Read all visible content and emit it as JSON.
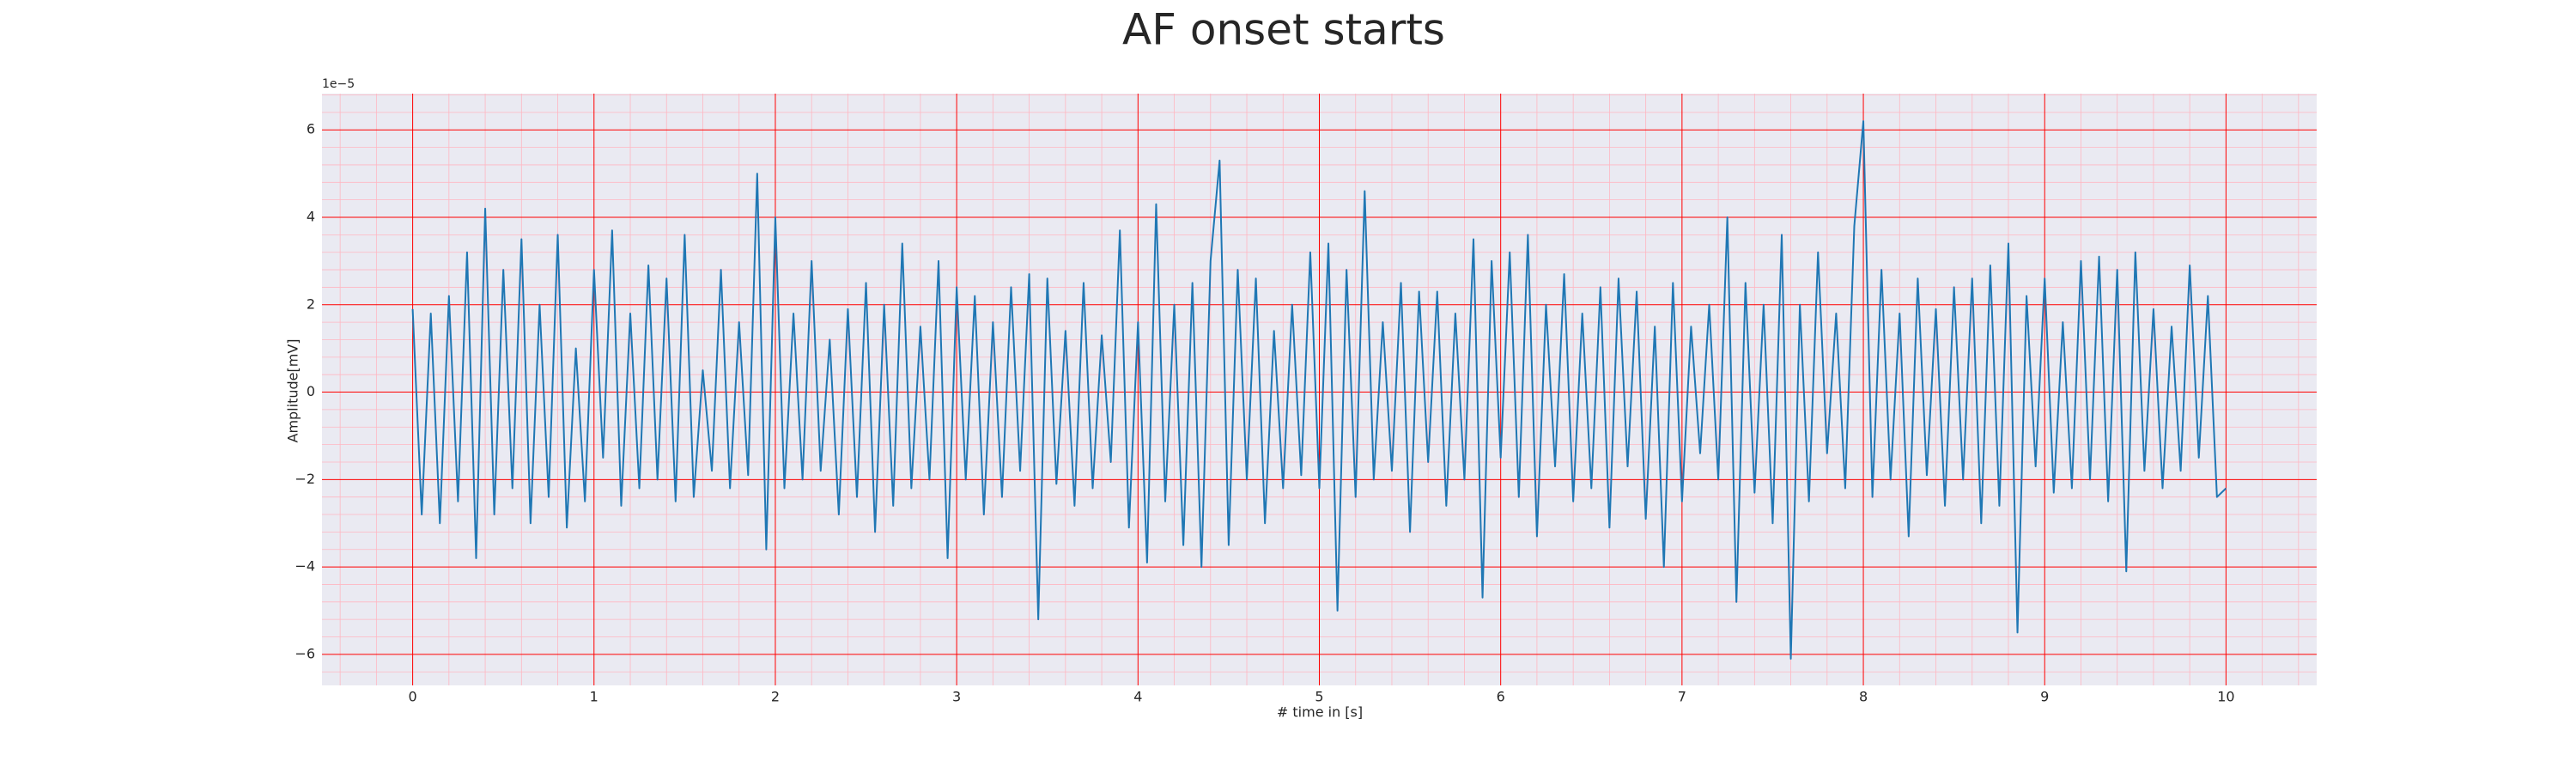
{
  "chart_data": {
    "type": "line",
    "title": "AF onset starts",
    "xlabel": "# time in [s]",
    "ylabel": "Amplitude[mV]",
    "offset_label": "1e−5",
    "color": "#1f77b4",
    "background": "#eaeaf2",
    "grid": true,
    "minor_grid": true,
    "grid_color": "#ff0000",
    "xlim": [
      -0.5,
      10.5
    ],
    "ylim": [
      -6.71,
      6.83
    ],
    "xticks": [
      0,
      1,
      2,
      3,
      4,
      5,
      6,
      7,
      8,
      9,
      10
    ],
    "yticks": [
      {
        "value": -6,
        "label": "−6"
      },
      {
        "value": -4,
        "label": "−4"
      },
      {
        "value": -2,
        "label": "−2"
      },
      0,
      2,
      4,
      6
    ],
    "x": [
      0,
      0.05,
      0.1,
      0.15,
      0.2,
      0.25,
      0.3,
      0.35,
      0.4,
      0.45,
      0.5,
      0.55,
      0.6,
      0.65,
      0.7,
      0.75,
      0.8,
      0.85,
      0.9,
      0.95,
      1,
      1.05,
      1.1,
      1.15,
      1.2,
      1.25,
      1.3,
      1.35,
      1.4,
      1.45,
      1.5,
      1.55,
      1.6,
      1.65,
      1.7,
      1.75,
      1.8,
      1.85,
      1.9,
      1.95,
      2,
      2.05,
      2.1,
      2.15,
      2.2,
      2.25,
      2.3,
      2.35,
      2.4,
      2.45,
      2.5,
      2.55,
      2.6,
      2.65,
      2.7,
      2.75,
      2.8,
      2.85,
      2.9,
      2.95,
      3,
      3.05,
      3.1,
      3.15,
      3.2,
      3.25,
      3.3,
      3.35,
      3.4,
      3.45,
      3.5,
      3.55,
      3.6,
      3.65,
      3.7,
      3.75,
      3.8,
      3.85,
      3.9,
      3.95,
      4,
      4.05,
      4.1,
      4.15,
      4.2,
      4.25,
      4.3,
      4.35,
      4.4,
      4.45,
      4.5,
      4.55,
      4.6,
      4.65,
      4.7,
      4.75,
      4.8,
      4.85,
      4.9,
      4.95,
      5,
      5.05,
      5.1,
      5.15,
      5.2,
      5.25,
      5.3,
      5.35,
      5.4,
      5.45,
      5.5,
      5.55,
      5.6,
      5.65,
      5.7,
      5.75,
      5.8,
      5.85,
      5.9,
      5.95,
      6,
      6.05,
      6.1,
      6.15,
      6.2,
      6.25,
      6.3,
      6.35,
      6.4,
      6.45,
      6.5,
      6.55,
      6.6,
      6.65,
      6.7,
      6.75,
      6.8,
      6.85,
      6.9,
      6.95,
      7,
      7.05,
      7.1,
      7.15,
      7.2,
      7.25,
      7.3,
      7.35,
      7.4,
      7.45,
      7.5,
      7.55,
      7.6,
      7.65,
      7.7,
      7.75,
      7.8,
      7.85,
      7.9,
      7.95,
      8,
      8.05,
      8.1,
      8.15,
      8.2,
      8.25,
      8.3,
      8.35,
      8.4,
      8.45,
      8.5,
      8.55,
      8.6,
      8.65,
      8.7,
      8.75,
      8.8,
      8.85,
      8.9,
      8.95,
      9,
      9.05,
      9.1,
      9.15,
      9.2,
      9.25,
      9.3,
      9.35,
      9.4,
      9.45,
      9.5,
      9.55,
      9.6,
      9.65,
      9.7,
      9.75,
      9.8,
      9.85,
      9.9,
      9.95,
      10
    ],
    "values": [
      1.9,
      -2.8,
      1.8,
      -3.0,
      2.2,
      -2.5,
      3.2,
      -3.8,
      4.2,
      -2.8,
      2.8,
      -2.2,
      3.5,
      -3.0,
      2.0,
      -2.4,
      3.6,
      -3.1,
      1.0,
      -2.5,
      2.8,
      -1.5,
      3.7,
      -2.6,
      1.8,
      -2.2,
      2.9,
      -2.0,
      2.6,
      -2.5,
      3.6,
      -2.4,
      0.5,
      -1.8,
      2.8,
      -2.2,
      1.6,
      -1.9,
      5.0,
      -3.6,
      4.0,
      -2.2,
      1.8,
      -2.0,
      3.0,
      -1.8,
      1.2,
      -2.8,
      1.9,
      -2.4,
      2.5,
      -3.2,
      2.0,
      -2.6,
      3.4,
      -2.2,
      1.5,
      -2.0,
      3.0,
      -3.8,
      2.4,
      -2.0,
      2.2,
      -2.8,
      1.6,
      -2.4,
      2.4,
      -1.8,
      2.7,
      -5.2,
      2.6,
      -2.1,
      1.4,
      -2.6,
      2.5,
      -2.2,
      1.3,
      -1.6,
      3.7,
      -3.1,
      1.6,
      -3.9,
      4.3,
      -2.5,
      2.0,
      -3.5,
      2.5,
      -4.0,
      3.0,
      5.3,
      -3.5,
      2.8,
      -2.0,
      2.6,
      -3.0,
      1.4,
      -2.2,
      2.0,
      -1.9,
      3.2,
      -2.2,
      3.4,
      -5.0,
      2.8,
      -2.4,
      4.6,
      -2.0,
      1.6,
      -1.8,
      2.5,
      -3.2,
      2.3,
      -1.6,
      2.3,
      -2.6,
      1.8,
      -2.0,
      3.5,
      -4.7,
      3.0,
      -1.5,
      3.2,
      -2.4,
      3.6,
      -3.3,
      2.0,
      -1.7,
      2.7,
      -2.5,
      1.8,
      -2.2,
      2.4,
      -3.1,
      2.6,
      -1.7,
      2.3,
      -2.9,
      1.5,
      -4.0,
      2.5,
      -2.5,
      1.5,
      -1.4,
      2.0,
      -2.0,
      4.0,
      -4.8,
      2.5,
      -2.3,
      2.0,
      -3.0,
      3.6,
      -6.1,
      2.0,
      -2.5,
      3.2,
      -1.4,
      1.8,
      -2.2,
      3.8,
      6.2,
      -2.4,
      2.8,
      -2.0,
      1.8,
      -3.3,
      2.6,
      -1.9,
      1.9,
      -2.6,
      2.4,
      -2.0,
      2.6,
      -3.0,
      2.9,
      -2.6,
      3.4,
      -5.5,
      2.2,
      -1.7,
      2.6,
      -2.3,
      1.6,
      -2.2,
      3.0,
      -2.0,
      3.1,
      -2.5,
      2.8,
      -4.1,
      3.2,
      -1.8,
      1.9,
      -2.2,
      1.5,
      -1.8,
      2.9,
      -1.5,
      2.2,
      -2.4,
      -2.2
    ]
  }
}
